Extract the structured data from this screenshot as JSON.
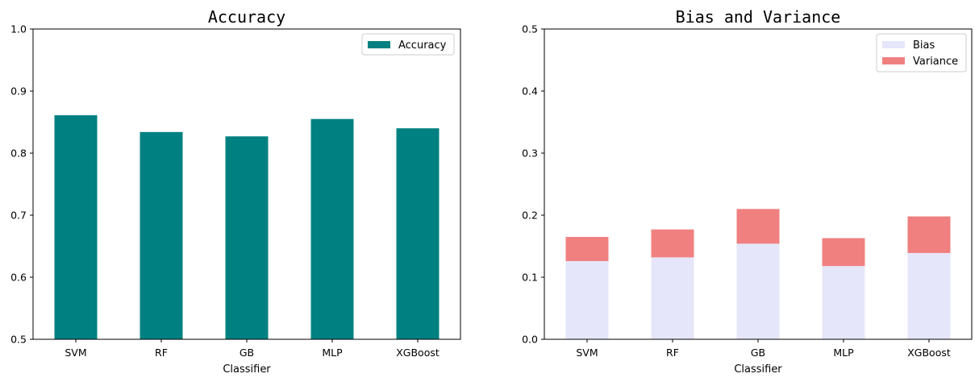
{
  "chart_data": [
    {
      "type": "bar",
      "title": "Accuracy",
      "xlabel": "Classifier",
      "ylabel": "",
      "categories": [
        "SVM",
        "RF",
        "GB",
        "MLP",
        "XGBoost"
      ],
      "series": [
        {
          "name": "Accuracy",
          "values": [
            0.861,
            0.834,
            0.827,
            0.855,
            0.84
          ],
          "color": "#008080"
        }
      ],
      "ylim": [
        0.5,
        1.0
      ],
      "yticks": [
        "0.5",
        "0.6",
        "0.7",
        "0.8",
        "0.9",
        "1.0"
      ],
      "legend": "top-right",
      "grid": false,
      "stacked": false
    },
    {
      "type": "bar",
      "title": "Bias and Variance",
      "xlabel": "Classifier",
      "ylabel": "",
      "categories": [
        "SVM",
        "RF",
        "GB",
        "MLP",
        "XGBoost"
      ],
      "series": [
        {
          "name": "Bias",
          "values": [
            0.126,
            0.132,
            0.154,
            0.118,
            0.139
          ],
          "color": "#e6e6fa"
        },
        {
          "name": "Variance",
          "values": [
            0.039,
            0.045,
            0.056,
            0.045,
            0.059
          ],
          "color": "#f08080"
        }
      ],
      "ylim": [
        0.0,
        0.5
      ],
      "yticks": [
        "0.0",
        "0.1",
        "0.2",
        "0.3",
        "0.4",
        "0.5"
      ],
      "legend": "top-right",
      "grid": false,
      "stacked": true
    }
  ]
}
